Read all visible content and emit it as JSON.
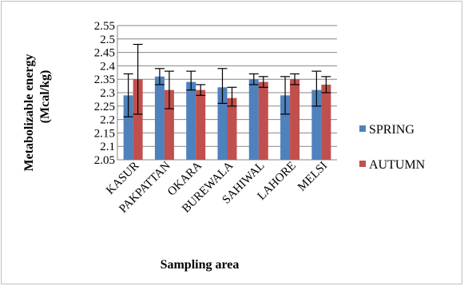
{
  "chart_data": {
    "type": "bar",
    "title": "",
    "xlabel": "Sampling area",
    "ylabel_line1": "Metabolizable energy",
    "ylabel_line2": "(Mcal/kg)",
    "ylim": [
      2.05,
      2.55
    ],
    "yticks": [
      "2.05",
      "2.1",
      "2.15",
      "2.2",
      "2.25",
      "2.3",
      "2.35",
      "2.4",
      "2.45",
      "2.5",
      "2.55"
    ],
    "grid": true,
    "legend_position": "right",
    "categories": [
      "KASUR",
      "PAKPATTAN",
      "OKARA",
      "BUREWALA",
      "SAHIWAL",
      "LAHORE",
      "MELSI"
    ],
    "series": [
      {
        "name": "SPRING",
        "color": "#4f81bd",
        "values": [
          2.29,
          2.36,
          2.34,
          2.32,
          2.35,
          2.29,
          2.31
        ],
        "error_low": [
          2.21,
          2.33,
          2.31,
          2.26,
          2.33,
          2.22,
          2.25
        ],
        "error_high": [
          2.37,
          2.39,
          2.38,
          2.39,
          2.37,
          2.36,
          2.38
        ]
      },
      {
        "name": "AUTUMN",
        "color": "#c0504d",
        "values": [
          2.35,
          2.31,
          2.31,
          2.28,
          2.34,
          2.35,
          2.33
        ],
        "error_low": [
          2.22,
          2.24,
          2.29,
          2.25,
          2.32,
          2.33,
          2.3
        ],
        "error_high": [
          2.48,
          2.38,
          2.33,
          2.32,
          2.36,
          2.37,
          2.36
        ]
      }
    ]
  }
}
